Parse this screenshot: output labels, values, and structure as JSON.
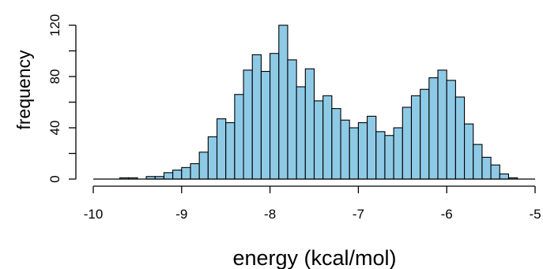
{
  "chart_data": {
    "type": "bar",
    "subtype": "histogram",
    "title": "",
    "xlabel": "energy (kcal/mol)",
    "ylabel": "frequency",
    "xlim": [
      -10,
      -5
    ],
    "ylim": [
      0,
      120
    ],
    "x_ticks": [
      -10,
      -9,
      -8,
      -7,
      -6,
      -5
    ],
    "x_tick_labels": [
      "-10",
      "-9",
      "-8",
      "-7",
      "-6",
      "-5"
    ],
    "y_ticks": [
      0,
      40,
      80,
      120
    ],
    "y_tick_labels": [
      "0",
      "40",
      "80",
      "120"
    ],
    "bin_width": 0.1,
    "bin_starts": [
      -10.0,
      -9.9,
      -9.8,
      -9.7,
      -9.6,
      -9.5,
      -9.4,
      -9.3,
      -9.2,
      -9.1,
      -9.0,
      -8.9,
      -8.8,
      -8.7,
      -8.6,
      -8.5,
      -8.4,
      -8.3,
      -8.2,
      -8.1,
      -8.0,
      -7.9,
      -7.8,
      -7.7,
      -7.6,
      -7.5,
      -7.4,
      -7.3,
      -7.2,
      -7.1,
      -7.0,
      -6.9,
      -6.8,
      -6.7,
      -6.6,
      -6.5,
      -6.4,
      -6.3,
      -6.2,
      -6.1,
      -6.0,
      -5.9,
      -5.8,
      -5.7,
      -5.6,
      -5.5,
      -5.4,
      -5.3,
      -5.2,
      -5.1
    ],
    "values": [
      0,
      0,
      0,
      1,
      1,
      0,
      2,
      2,
      5,
      7,
      9,
      12,
      21,
      33,
      47,
      44,
      66,
      85,
      97,
      84,
      98,
      120,
      93,
      72,
      86,
      61,
      65,
      55,
      46,
      40,
      44,
      49,
      37,
      34,
      40,
      56,
      65,
      70,
      79,
      85,
      77,
      64,
      43,
      27,
      17,
      11,
      4,
      1,
      0,
      0
    ],
    "bar_color": "#8ecae6",
    "edge_color": "#000000",
    "grid": false,
    "legend": "none"
  }
}
